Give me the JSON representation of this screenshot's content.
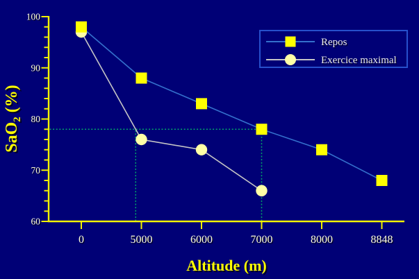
{
  "chart_data": {
    "type": "line",
    "title": "",
    "xlabel": "Altitude (m)",
    "ylabel": "SaO2 (%)",
    "ylabel_rich": {
      "base": "SaO",
      "subscript": "2",
      "suffix": " (%)"
    },
    "categories": [
      "0",
      "5000",
      "6000",
      "7000",
      "8000",
      "8848"
    ],
    "y_axis": {
      "min": 60,
      "max": 100,
      "major_step": 10,
      "minor_step": 2,
      "tick_labels": [
        "100",
        "90",
        "80",
        "70",
        "60"
      ]
    },
    "series": [
      {
        "name": "Repos",
        "marker": "square",
        "marker_color": "#ffff00",
        "line_color": "#3470cc",
        "values": [
          98,
          88,
          83,
          78,
          74,
          68
        ]
      },
      {
        "name": "Exercice maximal",
        "marker": "circle",
        "marker_color": "#ffffa6",
        "line_color": "#c6c6c6",
        "values": [
          97,
          76,
          74,
          66,
          null,
          null
        ]
      }
    ],
    "legend": {
      "position": "top-right",
      "items": [
        "Repos",
        "Exercice maximal"
      ]
    },
    "annotations": {
      "dotted_color": "#00a869",
      "horizontal_guide": {
        "value": 78,
        "from": "y-axis",
        "to_category": "7000"
      },
      "vertical_guides": [
        {
          "type": "interpolated",
          "series": "Exercice maximal",
          "at_value": 78,
          "between_categories": [
            "0",
            "5000"
          ]
        },
        {
          "type": "category",
          "category": "7000",
          "up_to_value": 78
        }
      ]
    },
    "grid": false,
    "legend_border_on": true
  },
  "colors": {
    "background": "#000076",
    "axis": "#f2f200",
    "tick_label": "#ffffdd",
    "axis_title": "#ffff00",
    "title_shadow": "#000022",
    "legend_border": "#2750cc",
    "legend_text": "#ebebeb"
  }
}
